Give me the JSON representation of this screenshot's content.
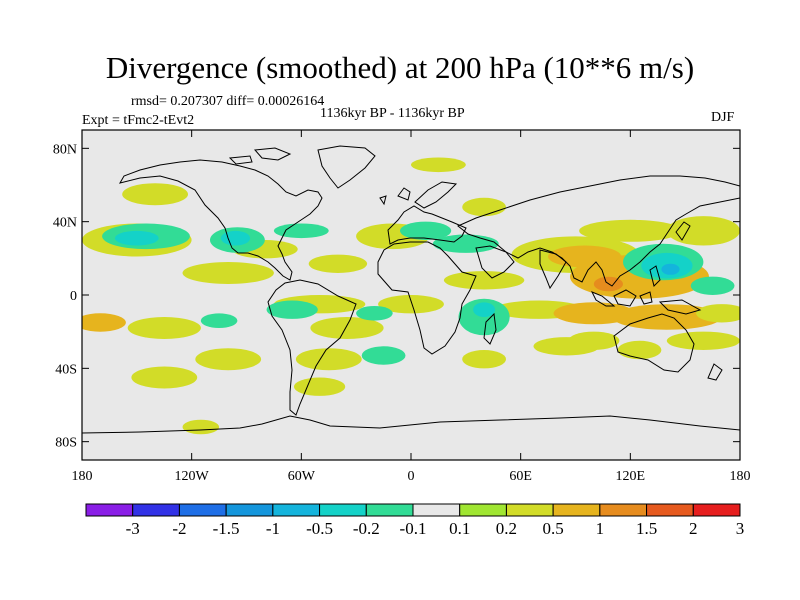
{
  "title": "Divergence (smoothed) at 200 hPa (10**6 m/s)",
  "stats_line": "rmsd= 0.207307 diff= 0.00026164",
  "experiment_line": "Expt = tFmc2-tEvt2",
  "period_line": "1136kyr BP - 1136kyr BP",
  "season": "DJF",
  "chart_data": {
    "type": "heatmap",
    "title": "Divergence (smoothed) at 200 hPa (10**6 m/s)",
    "projection": "cylindrical equidistant",
    "xlim": [
      -180,
      180
    ],
    "ylim": [
      -90,
      90
    ],
    "x_ticks": [
      {
        "value": -180,
        "label": "180"
      },
      {
        "value": -120,
        "label": "120W"
      },
      {
        "value": -60,
        "label": "60W"
      },
      {
        "value": 0,
        "label": "0"
      },
      {
        "value": 60,
        "label": "60E"
      },
      {
        "value": 120,
        "label": "120E"
      },
      {
        "value": 180,
        "label": "180"
      }
    ],
    "y_ticks": [
      {
        "value": 80,
        "label": "80N"
      },
      {
        "value": 40,
        "label": "40N"
      },
      {
        "value": 0,
        "label": "0"
      },
      {
        "value": -40,
        "label": "40S"
      },
      {
        "value": -80,
        "label": "80S"
      }
    ],
    "colorbar": {
      "levels": [
        "-3",
        "-2",
        "-1.5",
        "-1",
        "-0.5",
        "-0.2",
        "-0.1",
        "0.1",
        "0.2",
        "0.5",
        "1",
        "1.5",
        "2",
        "3"
      ],
      "colors": [
        "#8a1ee6",
        "#3232e6",
        "#1e6ee6",
        "#1496dc",
        "#14b4dc",
        "#14d2c8",
        "#32dc96",
        "#e8e8e8",
        "#a0e632",
        "#d2dc28",
        "#e6b41e",
        "#e68c1e",
        "#e65a1e",
        "#e61e1e"
      ]
    },
    "regions": [
      {
        "level": 0.2,
        "lon": -150,
        "lat": 30,
        "rx": 30,
        "ry": 9
      },
      {
        "level": -0.2,
        "lon": -145,
        "lat": 32,
        "rx": 24,
        "ry": 7
      },
      {
        "level": -0.5,
        "lon": -150,
        "lat": 31,
        "rx": 12,
        "ry": 4
      },
      {
        "level": 0.2,
        "lon": -140,
        "lat": 55,
        "rx": 18,
        "ry": 6
      },
      {
        "level": 0.2,
        "lon": -80,
        "lat": 25,
        "rx": 18,
        "ry": 5
      },
      {
        "level": -0.2,
        "lon": -95,
        "lat": 30,
        "rx": 15,
        "ry": 7
      },
      {
        "level": -0.5,
        "lon": -96,
        "lat": 31,
        "rx": 8,
        "ry": 4
      },
      {
        "level": 0.2,
        "lon": -100,
        "lat": 12,
        "rx": 25,
        "ry": 6
      },
      {
        "level": -0.2,
        "lon": -60,
        "lat": 35,
        "rx": 15,
        "ry": 4
      },
      {
        "level": 0.2,
        "lon": -40,
        "lat": 17,
        "rx": 16,
        "ry": 5
      },
      {
        "level": 0.2,
        "lon": -10,
        "lat": 32,
        "rx": 20,
        "ry": 7
      },
      {
        "level": -0.2,
        "lon": 8,
        "lat": 35,
        "rx": 14,
        "ry": 5
      },
      {
        "level": 0.2,
        "lon": 15,
        "lat": 71,
        "rx": 15,
        "ry": 4
      },
      {
        "level": 0.2,
        "lon": 40,
        "lat": 48,
        "rx": 12,
        "ry": 5
      },
      {
        "level": -0.2,
        "lon": 30,
        "lat": 28,
        "rx": 18,
        "ry": 5
      },
      {
        "level": 0.2,
        "lon": 40,
        "lat": 8,
        "rx": 22,
        "ry": 5
      },
      {
        "level": 0.2,
        "lon": 90,
        "lat": 22,
        "rx": 35,
        "ry": 10
      },
      {
        "level": 0.5,
        "lon": 95,
        "lat": 21,
        "rx": 20,
        "ry": 6
      },
      {
        "level": 0.2,
        "lon": 120,
        "lat": 35,
        "rx": 28,
        "ry": 6
      },
      {
        "level": 0.5,
        "lon": 125,
        "lat": 10,
        "rx": 38,
        "ry": 12
      },
      {
        "level": 1,
        "lon": 108,
        "lat": 6,
        "rx": 8,
        "ry": 4
      },
      {
        "level": 0.2,
        "lon": 160,
        "lat": 35,
        "rx": 20,
        "ry": 8
      },
      {
        "level": -0.2,
        "lon": 138,
        "lat": 18,
        "rx": 22,
        "ry": 10
      },
      {
        "level": -0.5,
        "lon": 140,
        "lat": 16,
        "rx": 14,
        "ry": 7
      },
      {
        "level": -1,
        "lon": 142,
        "lat": 14,
        "rx": 5,
        "ry": 3
      },
      {
        "level": -0.2,
        "lon": 165,
        "lat": 5,
        "rx": 12,
        "ry": 5
      },
      {
        "level": 0.2,
        "lon": -50,
        "lat": -5,
        "rx": 25,
        "ry": 5
      },
      {
        "level": -0.2,
        "lon": -65,
        "lat": -8,
        "rx": 14,
        "ry": 5
      },
      {
        "level": 0.2,
        "lon": 0,
        "lat": -5,
        "rx": 18,
        "ry": 5
      },
      {
        "level": 0.2,
        "lon": 70,
        "lat": -8,
        "rx": 25,
        "ry": 5
      },
      {
        "level": 0.5,
        "lon": 100,
        "lat": -10,
        "rx": 22,
        "ry": 6
      },
      {
        "level": 0.5,
        "lon": 140,
        "lat": -12,
        "rx": 30,
        "ry": 7
      },
      {
        "level": 0.2,
        "lon": 170,
        "lat": -10,
        "rx": 14,
        "ry": 5
      },
      {
        "level": -0.2,
        "lon": 40,
        "lat": -12,
        "rx": 14,
        "ry": 10
      },
      {
        "level": -0.5,
        "lon": 40,
        "lat": -8,
        "rx": 6,
        "ry": 4
      },
      {
        "level": 0.2,
        "lon": 40,
        "lat": -35,
        "rx": 12,
        "ry": 5
      },
      {
        "level": 0.5,
        "lon": -170,
        "lat": -15,
        "rx": 14,
        "ry": 5
      },
      {
        "level": 0.2,
        "lon": -135,
        "lat": -18,
        "rx": 20,
        "ry": 6
      },
      {
        "level": -0.2,
        "lon": -105,
        "lat": -14,
        "rx": 10,
        "ry": 4
      },
      {
        "level": 0.2,
        "lon": -35,
        "lat": -18,
        "rx": 20,
        "ry": 6
      },
      {
        "level": -0.2,
        "lon": -20,
        "lat": -10,
        "rx": 10,
        "ry": 4
      },
      {
        "level": 0.2,
        "lon": 100,
        "lat": -25,
        "rx": 14,
        "ry": 5
      },
      {
        "level": 0.2,
        "lon": 160,
        "lat": -25,
        "rx": 20,
        "ry": 5
      },
      {
        "level": 0.2,
        "lon": -100,
        "lat": -35,
        "rx": 18,
        "ry": 6
      },
      {
        "level": 0.2,
        "lon": -45,
        "lat": -35,
        "rx": 18,
        "ry": 6
      },
      {
        "level": -0.2,
        "lon": -15,
        "lat": -33,
        "rx": 12,
        "ry": 5
      },
      {
        "level": 0.2,
        "lon": 85,
        "lat": -28,
        "rx": 18,
        "ry": 5
      },
      {
        "level": 0.2,
        "lon": 125,
        "lat": -30,
        "rx": 12,
        "ry": 5
      },
      {
        "level": 0.2,
        "lon": -135,
        "lat": -45,
        "rx": 18,
        "ry": 6
      },
      {
        "level": 0.2,
        "lon": -50,
        "lat": -50,
        "rx": 14,
        "ry": 5
      },
      {
        "level": 0.2,
        "lon": -115,
        "lat": -72,
        "rx": 10,
        "ry": 4
      }
    ]
  }
}
